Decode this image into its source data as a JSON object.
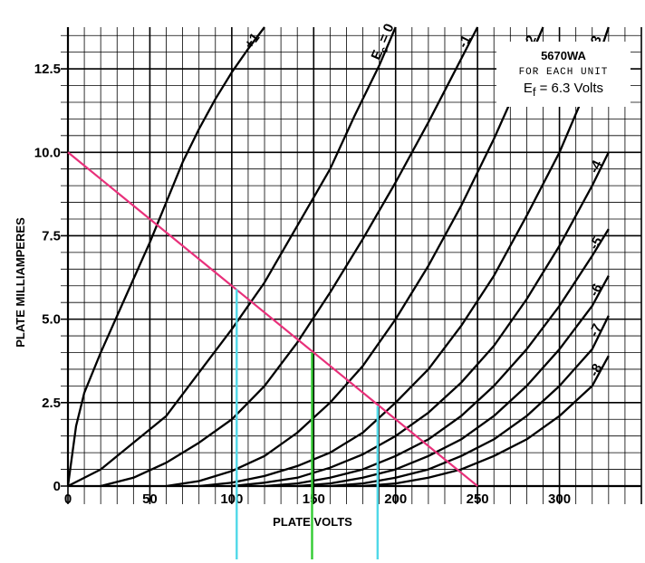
{
  "chart_data": {
    "type": "line",
    "title": "",
    "xlabel": "PLATE VOLTS",
    "ylabel": "PLATE MILLIAMPERES",
    "xlim": [
      0,
      350
    ],
    "ylim": [
      0,
      13.75
    ],
    "x_ticks": [
      "0",
      "50",
      "100",
      "150",
      "200",
      "250",
      "300"
    ],
    "y_ticks": [
      "0",
      "2.5",
      "5.0",
      "7.5",
      "10.0",
      "12.5"
    ],
    "grid": true,
    "legend": "none",
    "info_box": {
      "model": "5670WA",
      "subtitle": "FOR EACH UNIT",
      "filament_prefix": "E",
      "filament_sub": "f",
      "filament_rest": " = 6.3 Volts"
    },
    "series_label_prefix": "E",
    "series_label_sub": "c",
    "series_label_sep": " = ",
    "series": [
      {
        "name": "+1",
        "x": [
          0,
          5,
          10,
          20,
          30,
          40,
          50,
          60,
          70,
          80,
          90,
          100,
          110,
          120
        ],
        "y": [
          0,
          1.8,
          2.8,
          4.0,
          5.1,
          6.2,
          7.3,
          8.5,
          9.7,
          10.7,
          11.6,
          12.4,
          13.1,
          13.75
        ]
      },
      {
        "name": "0",
        "x": [
          0,
          20,
          40,
          60,
          80,
          100,
          120,
          140,
          160,
          175,
          190,
          200
        ],
        "y": [
          0,
          0.5,
          1.3,
          2.1,
          3.4,
          4.7,
          6.1,
          7.8,
          9.5,
          11.1,
          12.6,
          13.75
        ]
      },
      {
        "name": "-1",
        "x": [
          20,
          40,
          60,
          80,
          100,
          120,
          140,
          160,
          180,
          200,
          220,
          240,
          250
        ],
        "y": [
          0,
          0.25,
          0.7,
          1.3,
          2.0,
          3.0,
          4.3,
          5.8,
          7.4,
          9.1,
          10.9,
          12.8,
          13.75
        ]
      },
      {
        "name": "-2",
        "x": [
          60,
          80,
          100,
          120,
          140,
          160,
          180,
          200,
          220,
          240,
          260,
          280,
          290
        ],
        "y": [
          0,
          0.15,
          0.45,
          0.9,
          1.6,
          2.5,
          3.6,
          5.0,
          6.6,
          8.4,
          10.4,
          12.6,
          13.75
        ]
      },
      {
        "name": "-3",
        "x": [
          80,
          100,
          120,
          140,
          160,
          180,
          200,
          220,
          240,
          260,
          280,
          300,
          320,
          330
        ],
        "y": [
          0,
          0.1,
          0.3,
          0.6,
          1.0,
          1.6,
          2.5,
          3.5,
          4.8,
          6.3,
          8.1,
          10.0,
          12.3,
          13.75
        ]
      },
      {
        "name": "-4",
        "x": [
          100,
          120,
          140,
          160,
          180,
          200,
          220,
          240,
          260,
          280,
          300,
          320,
          330
        ],
        "y": [
          0,
          0.1,
          0.25,
          0.55,
          0.95,
          1.5,
          2.2,
          3.1,
          4.2,
          5.6,
          7.2,
          9.0,
          10.0
        ]
      },
      {
        "name": "-5",
        "x": [
          120,
          140,
          160,
          180,
          200,
          220,
          240,
          260,
          280,
          300,
          320,
          330
        ],
        "y": [
          0,
          0.08,
          0.25,
          0.5,
          0.9,
          1.4,
          2.1,
          3.0,
          4.1,
          5.4,
          6.9,
          7.7
        ]
      },
      {
        "name": "-6",
        "x": [
          140,
          160,
          180,
          200,
          220,
          240,
          260,
          280,
          300,
          320,
          330
        ],
        "y": [
          0,
          0.08,
          0.25,
          0.5,
          0.9,
          1.4,
          2.1,
          3.0,
          4.1,
          5.4,
          6.3
        ]
      },
      {
        "name": "-7",
        "x": [
          160,
          180,
          200,
          220,
          240,
          260,
          280,
          300,
          320,
          330
        ],
        "y": [
          0,
          0.08,
          0.25,
          0.5,
          0.9,
          1.4,
          2.1,
          3.0,
          4.1,
          5.1
        ]
      },
      {
        "name": "-8",
        "x": [
          180,
          200,
          220,
          240,
          260,
          280,
          300,
          320,
          330
        ],
        "y": [
          0,
          0.08,
          0.25,
          0.5,
          0.9,
          1.4,
          2.1,
          3.0,
          3.9
        ]
      }
    ],
    "load_line": {
      "x": [
        0,
        250
      ],
      "y": [
        10.0,
        0
      ],
      "color": "#e8307a"
    },
    "markers": [
      {
        "x": 103,
        "y": 5.9,
        "color": "#4fd8e8"
      },
      {
        "x": 149,
        "y": 4.0,
        "color": "#33cc33"
      },
      {
        "x": 189,
        "y": 2.4,
        "color": "#4fd8e8"
      }
    ]
  }
}
